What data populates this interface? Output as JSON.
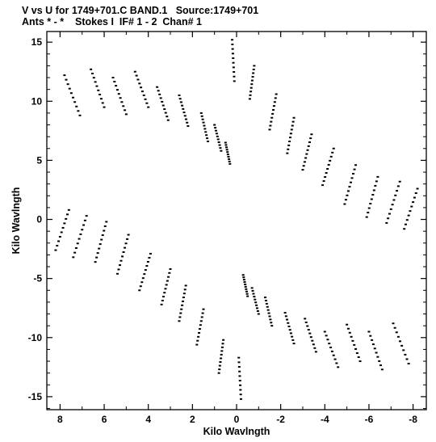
{
  "chart_data": {
    "type": "scatter",
    "title": "V vs U for 1749+701.C BAND.1   Source:1749+701",
    "subtitle": "Ants * - *    Stokes I  IF# 1 - 2  Chan# 1",
    "xlabel": "Kilo Wavlngth",
    "ylabel": "Kilo Wavlngth",
    "xlim": [
      8.6,
      -8.6
    ],
    "ylim": [
      -16.1,
      15.9
    ],
    "xticks": [
      8,
      6,
      4,
      2,
      0,
      -2,
      -4,
      -6,
      -8
    ],
    "xtick_labels": [
      "8",
      "6",
      "4",
      "2",
      "0",
      "-2",
      "-4",
      "-6",
      "-8"
    ],
    "yticks": [
      15,
      10,
      5,
      0,
      -5,
      -10,
      -15
    ],
    "ytick_labels": [
      "15",
      "10",
      "5",
      "0",
      "-5",
      "-10",
      "-15"
    ],
    "grid": false,
    "marker_color": "#000000",
    "tracks": [
      {
        "u": 8.2,
        "v": -2.6,
        "du": -0.6,
        "dv": 3.4
      },
      {
        "u": 7.8,
        "v": 12.2,
        "du": -0.7,
        "dv": -3.4
      },
      {
        "u": 7.4,
        "v": -3.2,
        "du": -0.6,
        "dv": 3.5
      },
      {
        "u": 6.6,
        "v": 12.7,
        "du": -0.6,
        "dv": -3.2
      },
      {
        "u": 6.4,
        "v": -3.6,
        "du": -0.5,
        "dv": 3.4
      },
      {
        "u": 5.6,
        "v": 12.0,
        "du": -0.6,
        "dv": -3.1
      },
      {
        "u": 5.4,
        "v": -4.6,
        "du": -0.5,
        "dv": 3.3
      },
      {
        "u": 4.6,
        "v": 12.5,
        "du": -0.6,
        "dv": -3.0
      },
      {
        "u": 4.4,
        "v": -6.0,
        "du": -0.5,
        "dv": 3.1
      },
      {
        "u": 3.6,
        "v": 11.2,
        "du": -0.5,
        "dv": -2.8
      },
      {
        "u": 3.4,
        "v": -7.2,
        "du": -0.4,
        "dv": 3.0
      },
      {
        "u": 2.6,
        "v": 10.5,
        "du": -0.4,
        "dv": -2.6
      },
      {
        "u": 2.6,
        "v": -8.6,
        "du": -0.3,
        "dv": 3.0
      },
      {
        "u": 1.8,
        "v": -10.6,
        "du": -0.3,
        "dv": 3.0
      },
      {
        "u": 1.6,
        "v": 9.0,
        "du": -0.3,
        "dv": -2.4
      },
      {
        "u": 1.0,
        "v": 8.0,
        "du": -0.3,
        "dv": -2.2
      },
      {
        "u": 0.8,
        "v": -13.0,
        "du": -0.2,
        "dv": 2.8
      },
      {
        "u": 0.5,
        "v": 6.5,
        "du": -0.2,
        "dv": -1.8
      },
      {
        "u": 0.2,
        "v": 15.2,
        "du": -0.1,
        "dv": -3.5
      },
      {
        "u": -0.2,
        "v": -15.2,
        "du": 0.1,
        "dv": 3.5
      },
      {
        "u": -0.5,
        "v": -6.5,
        "du": 0.2,
        "dv": 1.8
      },
      {
        "u": -0.8,
        "v": 13.0,
        "du": 0.2,
        "dv": -2.8
      },
      {
        "u": -1.0,
        "v": -8.0,
        "du": 0.3,
        "dv": 2.2
      },
      {
        "u": -1.6,
        "v": -9.0,
        "du": 0.3,
        "dv": 2.4
      },
      {
        "u": -1.8,
        "v": 10.6,
        "du": 0.3,
        "dv": -3.0
      },
      {
        "u": -2.6,
        "v": 8.6,
        "du": 0.3,
        "dv": -3.0
      },
      {
        "u": -2.6,
        "v": -10.5,
        "du": 0.4,
        "dv": 2.6
      },
      {
        "u": -3.4,
        "v": 7.2,
        "du": 0.4,
        "dv": -3.0
      },
      {
        "u": -3.6,
        "v": -11.2,
        "du": 0.5,
        "dv": 2.8
      },
      {
        "u": -4.4,
        "v": 6.0,
        "du": 0.5,
        "dv": -3.1
      },
      {
        "u": -4.6,
        "v": -12.5,
        "du": 0.6,
        "dv": 3.0
      },
      {
        "u": -5.4,
        "v": 4.6,
        "du": 0.5,
        "dv": -3.3
      },
      {
        "u": -5.6,
        "v": -12.0,
        "du": 0.6,
        "dv": 3.1
      },
      {
        "u": -6.4,
        "v": 3.6,
        "du": 0.5,
        "dv": -3.4
      },
      {
        "u": -6.6,
        "v": -12.7,
        "du": 0.6,
        "dv": 3.2
      },
      {
        "u": -7.4,
        "v": 3.2,
        "du": 0.6,
        "dv": -3.5
      },
      {
        "u": -7.8,
        "v": -12.2,
        "du": 0.7,
        "dv": 3.4
      },
      {
        "u": -8.2,
        "v": 2.6,
        "du": 0.6,
        "dv": -3.4
      }
    ],
    "points_per_track": 10
  }
}
